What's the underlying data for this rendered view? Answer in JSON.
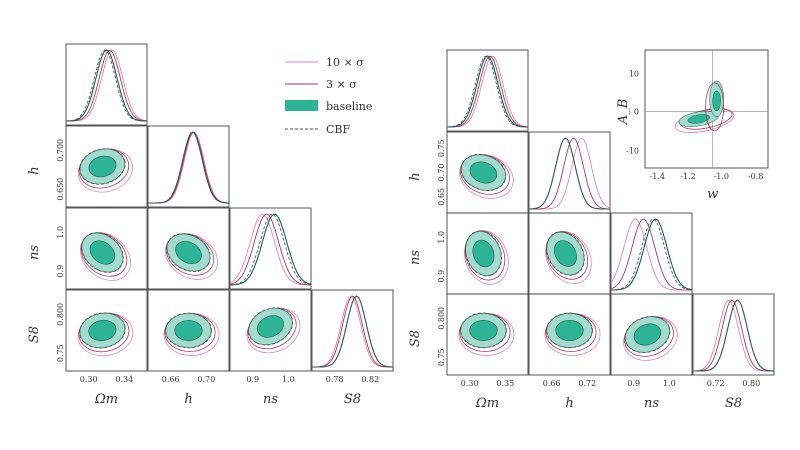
{
  "colors": {
    "fill_2sigma": "#a5dbcf",
    "fill_1sigma": "#2eb396",
    "baseline_line": "#1b5e50",
    "cbf": "#555555",
    "sigma10": "#d98ab3",
    "sigma3": "#a83a5e",
    "panel_frame": "#444444"
  },
  "legend": {
    "items": [
      {
        "label": "10 × σ",
        "style": "sigma10"
      },
      {
        "label": "3 × σ",
        "style": "sigma3"
      },
      {
        "label": "baseline",
        "style": "baseline"
      },
      {
        "label": "CBF",
        "style": "cbf"
      }
    ]
  },
  "chart_data": [
    {
      "type": "corner",
      "parameters": [
        "Ωm",
        "h",
        "ns",
        "S8"
      ],
      "axis_labels": {
        "x": [
          "Ωm",
          "h",
          "ns",
          "S8"
        ],
        "y": [
          "h",
          "ns",
          "S8"
        ]
      },
      "tick_labels": {
        "Omega_m": [
          "0.30",
          "0.34"
        ],
        "h": [
          "0.66",
          "0.70"
        ],
        "ns": [
          "0.9",
          "1.0"
        ],
        "S8": [
          "0.78",
          "0.82"
        ],
        "h_y": [
          "0.700",
          "0.650"
        ],
        "ns_y": [
          "1.0",
          "0.9"
        ],
        "S8_y": [
          "0.800",
          "0.75"
        ]
      },
      "series": [
        {
          "name": "10 × σ"
        },
        {
          "name": "3 × σ"
        },
        {
          "name": "baseline"
        },
        {
          "name": "CBF"
        }
      ]
    },
    {
      "type": "corner",
      "parameters": [
        "Ωm",
        "h",
        "ns",
        "S8"
      ],
      "axis_labels": {
        "x": [
          "Ωm",
          "h",
          "ns",
          "S8"
        ],
        "y": [
          "h",
          "ns",
          "S8"
        ]
      },
      "tick_labels": {
        "Omega_m": [
          "0.30",
          "0.35"
        ],
        "h": [
          "0.66",
          "0.72"
        ],
        "ns": [
          "0.9",
          "1.0"
        ],
        "S8": [
          "0.72",
          "0.80"
        ],
        "h_y": [
          "0.75",
          "0.70",
          "0.65"
        ],
        "ns_y": [
          "1.0",
          "0.9"
        ],
        "S8_y": [
          "0.800",
          "0.75"
        ]
      },
      "series": [
        {
          "name": "10 × σ"
        },
        {
          "name": "3 × σ"
        },
        {
          "name": "baseline"
        },
        {
          "name": "CBF"
        }
      ]
    },
    {
      "type": "contour",
      "xlabel": "w",
      "ylabel": "A_B",
      "x_ticks": [
        "-1.4",
        "-1.2",
        "-1.0",
        "-0.8"
      ],
      "y_ticks": [
        "10",
        "0",
        "-10"
      ]
    }
  ]
}
